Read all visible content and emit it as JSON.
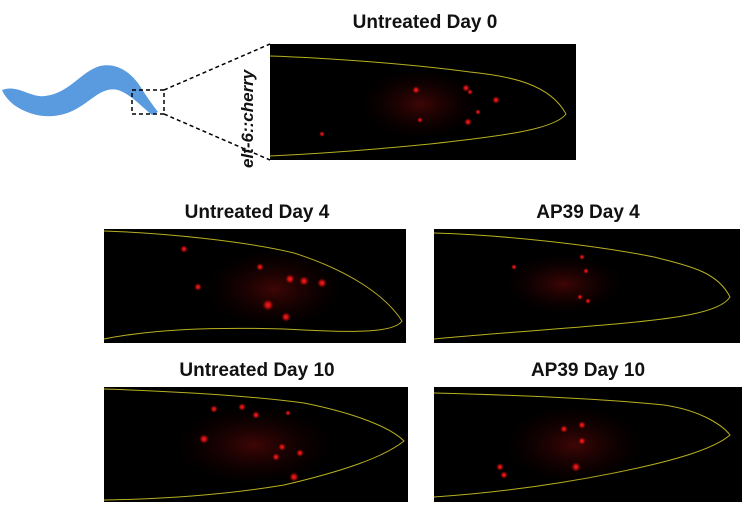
{
  "figure": {
    "reporter_label": "elt-6::cherry",
    "panels": [
      {
        "id": "untreated-day0",
        "title": "Untreated Day 0"
      },
      {
        "id": "untreated-day4",
        "title": "Untreated Day 4"
      },
      {
        "id": "ap39-day4",
        "title": "AP39 Day 4"
      },
      {
        "id": "untreated-day10",
        "title": "Untreated Day 10"
      },
      {
        "id": "ap39-day10",
        "title": "AP39 Day 10"
      }
    ],
    "colors": {
      "worm": "#5a9be0",
      "outline": "#b8b020",
      "nucleus": "#ff1a1a",
      "panel_bg": "#000000"
    }
  }
}
